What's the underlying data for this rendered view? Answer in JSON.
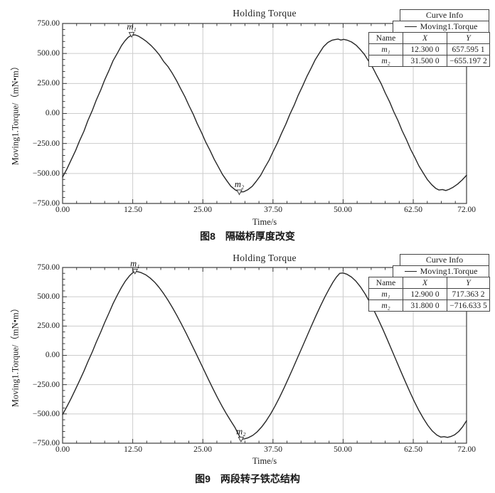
{
  "chart_data": [
    {
      "type": "line",
      "title": "Holding Torque",
      "caption": "图8　隔磁桥厚度改变",
      "xlabel": "Time/s",
      "ylabel": "Moving1.Torque/（mN•m）",
      "xlim": [
        0,
        72
      ],
      "ylim": [
        -750,
        750
      ],
      "grid": true,
      "legend_position": "top-right",
      "x_ticks": [
        0,
        12.5,
        25,
        37.5,
        50,
        62.5,
        72
      ],
      "x_tick_labels": [
        "0.00",
        "12.50",
        "25.00",
        "37.50",
        "50.00",
        "62.50",
        "72.00"
      ],
      "y_ticks": [
        750,
        500,
        250,
        0,
        -250,
        -500,
        -750
      ],
      "y_tick_labels": [
        "750.00",
        "500.00",
        "250.00",
        "0.00",
        "−250.00",
        "−500.00",
        "−750.00"
      ],
      "legend": {
        "header": "Curve Info",
        "series_label": "Moving1.Torque",
        "table_headers": [
          "Name",
          "X",
          "Y"
        ],
        "rows": [
          {
            "name": "m₁",
            "x": "12.300 0",
            "y": "657.595 1"
          },
          {
            "name": "m₂",
            "x": "31.500 0",
            "y": "−655.197 2"
          }
        ]
      },
      "markers": [
        {
          "label": "m₁",
          "x": 12.3,
          "y": 657.5951
        },
        {
          "label": "m₂",
          "x": 31.5,
          "y": -655.1972
        }
      ],
      "series": [
        {
          "name": "Moving1.Torque",
          "points": [
            [
              0,
              -530
            ],
            [
              0.8,
              -460
            ],
            [
              1.5,
              -390
            ],
            [
              2.3,
              -312
            ],
            [
              3,
              -230
            ],
            [
              3.8,
              -148
            ],
            [
              4.5,
              -60
            ],
            [
              5.3,
              25
            ],
            [
              6,
              110
            ],
            [
              6.8,
              195
            ],
            [
              7.5,
              280
            ],
            [
              8.3,
              362
            ],
            [
              9,
              440
            ],
            [
              9.8,
              505
            ],
            [
              10.5,
              565
            ],
            [
              11.1,
              605
            ],
            [
              11.7,
              635
            ],
            [
              12.3,
              652
            ],
            [
              12.9,
              655
            ],
            [
              13.5,
              645
            ],
            [
              14.2,
              625
            ],
            [
              15,
              598
            ],
            [
              15.8,
              565
            ],
            [
              16.5,
              530
            ],
            [
              17.3,
              485
            ],
            [
              18,
              434
            ],
            [
              18.8,
              390
            ],
            [
              19.5,
              340
            ],
            [
              20.3,
              275
            ],
            [
              21,
              210
            ],
            [
              21.8,
              140
            ],
            [
              22.5,
              68
            ],
            [
              23.3,
              -8
            ],
            [
              24,
              -85
            ],
            [
              24.8,
              -162
            ],
            [
              25.5,
              -238
            ],
            [
              26.3,
              -310
            ],
            [
              27,
              -380
            ],
            [
              27.8,
              -448
            ],
            [
              28.5,
              -508
            ],
            [
              29.3,
              -562
            ],
            [
              30,
              -607
            ],
            [
              30.8,
              -638
            ],
            [
              31.5,
              -654
            ],
            [
              32.3,
              -652
            ],
            [
              33,
              -636
            ],
            [
              33.8,
              -607
            ],
            [
              34.5,
              -566
            ],
            [
              35.3,
              -515
            ],
            [
              36,
              -455
            ],
            [
              36.8,
              -390
            ],
            [
              37.5,
              -320
            ],
            [
              38.3,
              -245
            ],
            [
              39,
              -168
            ],
            [
              39.8,
              -88
            ],
            [
              40.5,
              -8
            ],
            [
              41.3,
              72
            ],
            [
              42,
              152
            ],
            [
              42.8,
              230
            ],
            [
              43.5,
              305
            ],
            [
              44.3,
              378
            ],
            [
              45,
              445
            ],
            [
              45.8,
              505
            ],
            [
              46.5,
              556
            ],
            [
              47.3,
              592
            ],
            [
              48,
              610
            ],
            [
              48.6,
              616
            ],
            [
              49.1,
              620
            ],
            [
              49.6,
              612
            ],
            [
              50.1,
              618
            ],
            [
              50.7,
              611
            ],
            [
              51.5,
              596
            ],
            [
              52.3,
              570
            ],
            [
              53,
              536
            ],
            [
              53.8,
              492
            ],
            [
              54.5,
              440
            ],
            [
              55.3,
              380
            ],
            [
              56,
              316
            ],
            [
              56.8,
              246
            ],
            [
              57.5,
              172
            ],
            [
              58.3,
              96
            ],
            [
              59,
              18
            ],
            [
              59.8,
              -62
            ],
            [
              60.5,
              -142
            ],
            [
              61.3,
              -220
            ],
            [
              62,
              -296
            ],
            [
              62.8,
              -368
            ],
            [
              63.5,
              -436
            ],
            [
              64.3,
              -498
            ],
            [
              65,
              -550
            ],
            [
              65.8,
              -594
            ],
            [
              66.5,
              -624
            ],
            [
              67.1,
              -638
            ],
            [
              67.7,
              -634
            ],
            [
              68.3,
              -642
            ],
            [
              68.9,
              -632
            ],
            [
              69.6,
              -615
            ],
            [
              70.4,
              -589
            ],
            [
              71.2,
              -555
            ],
            [
              72,
              -515
            ]
          ]
        }
      ]
    },
    {
      "type": "line",
      "title": "Holding Torque",
      "caption": "图9　两段转子铁芯结构",
      "xlabel": "Time/s",
      "ylabel": "Moving1.Torque/（mN•m）",
      "xlim": [
        0,
        72
      ],
      "ylim": [
        -750,
        750
      ],
      "grid": true,
      "legend_position": "top-right",
      "x_ticks": [
        0,
        12.5,
        25,
        37.5,
        50,
        62.5,
        72
      ],
      "x_tick_labels": [
        "0.00",
        "12.50",
        "25.00",
        "37.50",
        "50.00",
        "62.50",
        "72.00"
      ],
      "y_ticks": [
        750,
        500,
        250,
        0,
        -250,
        -500,
        -750
      ],
      "y_tick_labels": [
        "750.00",
        "500.00",
        "250.00",
        "0.00",
        "−250.00",
        "−500.00",
        "−750.00"
      ],
      "legend": {
        "header": "Curve Info",
        "series_label": "Moving1.Torque",
        "table_headers": [
          "Name",
          "X",
          "Y"
        ],
        "rows": [
          {
            "name": "m₁",
            "x": "12.900 0",
            "y": "717.363 2"
          },
          {
            "name": "m₂",
            "x": "31.800 0",
            "y": "−716.633 5"
          }
        ]
      },
      "markers": [
        {
          "label": "m₁",
          "x": 12.9,
          "y": 717.3632
        },
        {
          "label": "m₂",
          "x": 31.8,
          "y": -716.6335
        }
      ],
      "series": [
        {
          "name": "Moving1.Torque",
          "points": [
            [
              0,
              -505
            ],
            [
              0.8,
              -435
            ],
            [
              1.5,
              -370
            ],
            [
              2.3,
              -290
            ],
            [
              3,
              -218
            ],
            [
              3.8,
              -135
            ],
            [
              4.5,
              -55
            ],
            [
              5.3,
              30
            ],
            [
              6,
              112
            ],
            [
              6.8,
              198
            ],
            [
              7.5,
              280
            ],
            [
              8.3,
              365
            ],
            [
              9,
              442
            ],
            [
              9.8,
              518
            ],
            [
              10.5,
              580
            ],
            [
              11.2,
              635
            ],
            [
              11.9,
              678
            ],
            [
              12.5,
              705
            ],
            [
              12.9,
              716
            ],
            [
              13.4,
              714
            ],
            [
              14,
              706
            ],
            [
              14.8,
              688
            ],
            [
              15.6,
              660
            ],
            [
              16.4,
              625
            ],
            [
              17.2,
              580
            ],
            [
              18,
              528
            ],
            [
              18.8,
              470
            ],
            [
              19.6,
              406
            ],
            [
              20.4,
              338
            ],
            [
              21.2,
              266
            ],
            [
              22,
              190
            ],
            [
              22.8,
              112
            ],
            [
              23.6,
              34
            ],
            [
              24.4,
              -46
            ],
            [
              25.2,
              -126
            ],
            [
              26,
              -206
            ],
            [
              26.8,
              -284
            ],
            [
              27.6,
              -360
            ],
            [
              28.4,
              -432
            ],
            [
              29.2,
              -500
            ],
            [
              30,
              -562
            ],
            [
              30.7,
              -614
            ],
            [
              31.3,
              -670
            ],
            [
              31.8,
              -715
            ],
            [
              32.4,
              -713
            ],
            [
              33.1,
              -703
            ],
            [
              33.9,
              -683
            ],
            [
              34.7,
              -652
            ],
            [
              35.5,
              -610
            ],
            [
              36.3,
              -558
            ],
            [
              37.1,
              -498
            ],
            [
              37.9,
              -430
            ],
            [
              38.7,
              -356
            ],
            [
              39.5,
              -276
            ],
            [
              40.3,
              -192
            ],
            [
              41.1,
              -106
            ],
            [
              41.9,
              -18
            ],
            [
              42.7,
              70
            ],
            [
              43.5,
              158
            ],
            [
              44.3,
              246
            ],
            [
              45.1,
              332
            ],
            [
              45.9,
              415
            ],
            [
              46.7,
              494
            ],
            [
              47.5,
              566
            ],
            [
              48.2,
              625
            ],
            [
              48.8,
              668
            ],
            [
              49.4,
              700
            ],
            [
              50,
              703
            ],
            [
              50.7,
              692
            ],
            [
              51.5,
              668
            ],
            [
              52.3,
              632
            ],
            [
              53.1,
              584
            ],
            [
              53.9,
              526
            ],
            [
              54.7,
              458
            ],
            [
              55.5,
              384
            ],
            [
              56.3,
              304
            ],
            [
              57.1,
              220
            ],
            [
              57.9,
              132
            ],
            [
              58.7,
              42
            ],
            [
              59.5,
              -48
            ],
            [
              60.3,
              -138
            ],
            [
              61.1,
              -226
            ],
            [
              61.9,
              -312
            ],
            [
              62.7,
              -394
            ],
            [
              63.5,
              -470
            ],
            [
              64.3,
              -538
            ],
            [
              65.1,
              -598
            ],
            [
              65.9,
              -646
            ],
            [
              66.7,
              -680
            ],
            [
              67.4,
              -698
            ],
            [
              68,
              -694
            ],
            [
              68.6,
              -700
            ],
            [
              69.2,
              -693
            ],
            [
              69.9,
              -678
            ],
            [
              70.6,
              -650
            ],
            [
              71.3,
              -610
            ],
            [
              72,
              -558
            ]
          ]
        }
      ]
    }
  ]
}
